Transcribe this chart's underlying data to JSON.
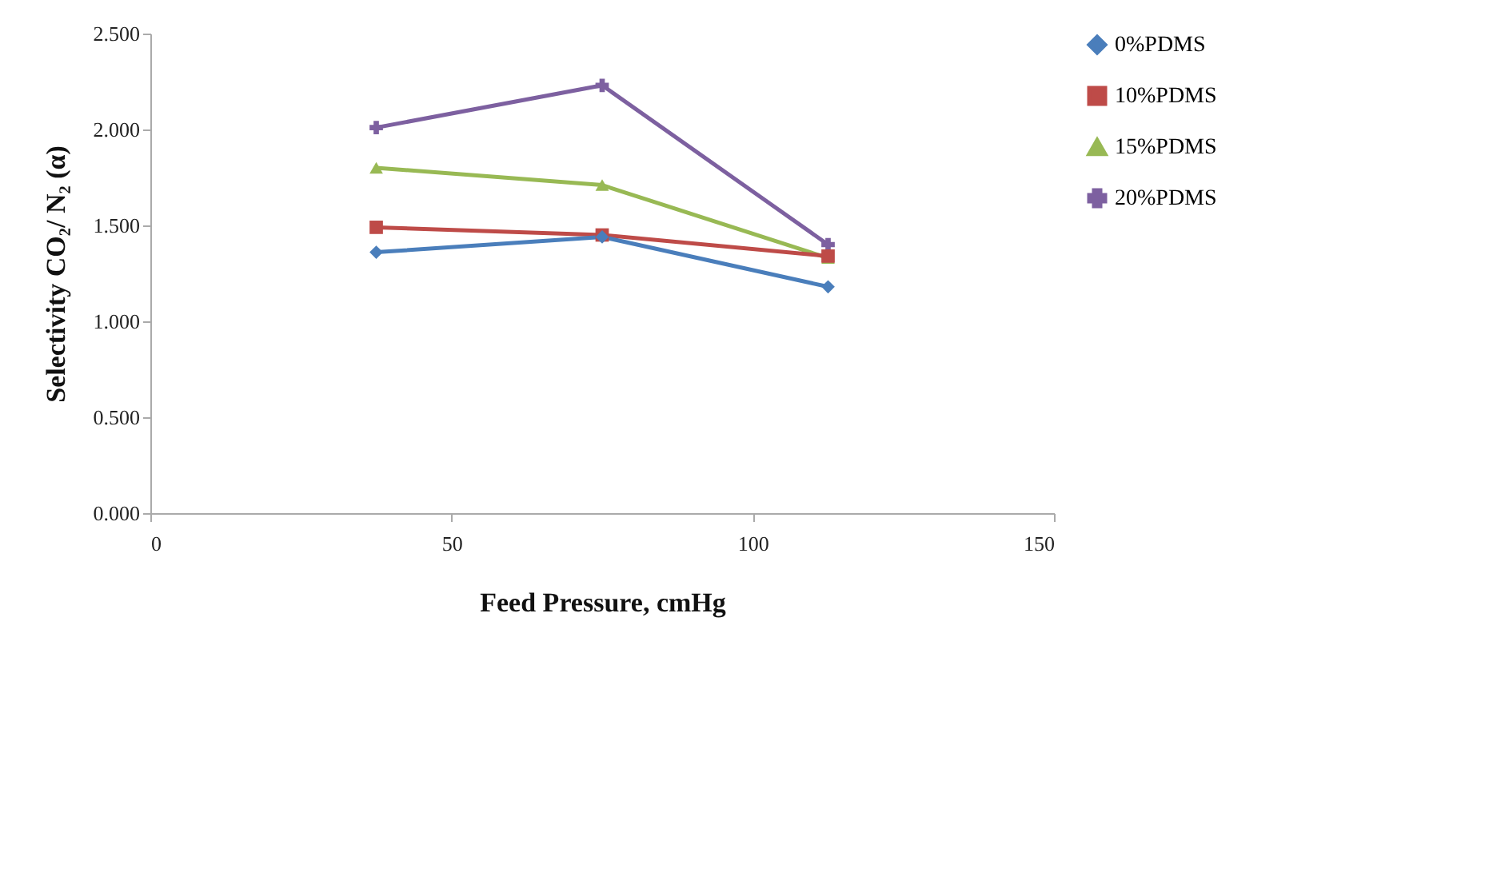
{
  "chart_data": {
    "type": "line",
    "xlabel": "Feed Pressure, cmHg",
    "ylabel": "Selectivity CO₂/ N₂ (α)",
    "x": [
      37.5,
      75,
      112.5
    ],
    "series": [
      {
        "name": "0%PDMS",
        "color": "#4a7ebb",
        "marker": "diamond",
        "values": [
          1.36,
          1.44,
          1.18
        ]
      },
      {
        "name": "10%PDMS",
        "color": "#be4b48",
        "marker": "square",
        "values": [
          1.49,
          1.45,
          1.34
        ]
      },
      {
        "name": "15%PDMS",
        "color": "#98b954",
        "marker": "triangle",
        "values": [
          1.8,
          1.71,
          1.33
        ]
      },
      {
        "name": "20%PDMS",
        "color": "#7d60a0",
        "marker": "cross",
        "values": [
          2.01,
          2.23,
          1.4
        ]
      }
    ],
    "xlim": [
      0,
      150
    ],
    "xticks": [
      0,
      50,
      100,
      150
    ],
    "ylim": [
      0,
      2.5
    ],
    "yticks": [
      {
        "value": 0,
        "label": "0.000"
      },
      {
        "value": 0.5,
        "label": "0.500"
      },
      {
        "value": 1,
        "label": "1.000"
      },
      {
        "value": 1.5,
        "label": "1.500"
      },
      {
        "value": 2,
        "label": "2.000"
      },
      {
        "value": 2.5,
        "label": "2.500"
      }
    ],
    "grid": false,
    "legend": "right",
    "line_style": "solid"
  }
}
